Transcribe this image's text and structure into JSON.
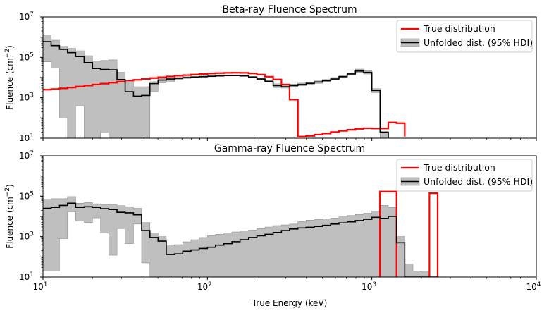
{
  "chart_data": [
    {
      "type": "line",
      "title": "Beta-ray Fluence Spectrum",
      "ylabel": "Fluence (cm",
      "ylabel_sup": "−2",
      "ylabel_close": ")",
      "xscale": "log",
      "yscale": "log",
      "xlim": [
        10,
        10000
      ],
      "ylim": [
        10,
        10000000
      ],
      "y_ticks": [
        10,
        1000,
        100000,
        10000000
      ],
      "y_tick_labels": [
        [
          "10",
          "1"
        ],
        [
          "10",
          "3"
        ],
        [
          "10",
          "5"
        ],
        [
          "10",
          "7"
        ]
      ],
      "legend_placement": "top-right",
      "edges": [
        10,
        11.2,
        12.6,
        14.1,
        15.8,
        17.8,
        20,
        22.4,
        25.1,
        28.2,
        31.6,
        35.5,
        39.8,
        44.7,
        50.1,
        56.2,
        63.1,
        70.8,
        79.4,
        89.1,
        100,
        112,
        126,
        141,
        158,
        178,
        200,
        224,
        251,
        282,
        316,
        355,
        398,
        447,
        501,
        562,
        631,
        708,
        794,
        891,
        1000,
        1122,
        1259,
        1413,
        1585
      ],
      "true_values": [
        2500,
        2700,
        2900,
        3200,
        3600,
        4000,
        4500,
        5000,
        5600,
        6300,
        7000,
        7700,
        8500,
        9400,
        10300,
        11300,
        12300,
        13200,
        14100,
        15000,
        15800,
        16500,
        17000,
        17200,
        17000,
        16000,
        14000,
        11000,
        8000,
        4500,
        800,
        12,
        13,
        15,
        17,
        20,
        23,
        26,
        29,
        31,
        30,
        30,
        60,
        55,
        12
      ],
      "true_end": 1585,
      "unfolded_values": [
        600000,
        380000,
        250000,
        170000,
        110000,
        55000,
        28000,
        25000,
        24000,
        8000,
        2000,
        1200,
        1300,
        5000,
        7500,
        8500,
        9200,
        10000,
        10500,
        11000,
        11500,
        12000,
        12500,
        12500,
        12000,
        10500,
        8500,
        6500,
        4000,
        3500,
        4000,
        4500,
        5200,
        6000,
        7000,
        8500,
        11000,
        15000,
        21000,
        18000,
        2300,
        20,
        5
      ],
      "unfolded_end": 1412,
      "hdi_low": [
        60000,
        30000,
        100,
        10,
        400,
        5,
        10,
        20,
        5,
        8,
        5,
        5,
        5,
        2000,
        5500,
        6500,
        8000,
        9000,
        9800,
        10500,
        11000,
        11500,
        11900,
        12000,
        11500,
        9800,
        7800,
        6000,
        3200,
        3000,
        3400,
        3900,
        4500,
        5200,
        6200,
        7500,
        9500,
        13000,
        18000,
        15000,
        1800,
        5,
        5
      ],
      "hdi_high": [
        1300000,
        700000,
        350000,
        280000,
        210000,
        120000,
        60000,
        70000,
        75000,
        18000,
        6000,
        3500,
        3500,
        6200,
        9000,
        9500,
        10200,
        11000,
        11500,
        12000,
        12500,
        12800,
        13300,
        13500,
        13200,
        11500,
        9200,
        7200,
        4900,
        4100,
        4700,
        5300,
        6000,
        6900,
        8000,
        10000,
        12500,
        17000,
        26000,
        22000,
        2800,
        20,
        8
      ]
    },
    {
      "type": "line",
      "title": "Gamma-ray Fluence Spectrum",
      "ylabel": "Fluence (cm",
      "ylabel_sup": "−2",
      "ylabel_close": ")",
      "xlabel": "True Energy (keV)",
      "xscale": "log",
      "yscale": "log",
      "xlim": [
        10,
        10000
      ],
      "ylim": [
        10,
        10000000
      ],
      "x_ticks": [
        10,
        100,
        1000,
        10000
      ],
      "x_tick_labels": [
        [
          "10",
          "1"
        ],
        [
          "10",
          "2"
        ],
        [
          "10",
          "3"
        ],
        [
          "10",
          "4"
        ]
      ],
      "y_ticks": [
        10,
        1000,
        100000,
        10000000
      ],
      "y_tick_labels": [
        [
          "10",
          "1"
        ],
        [
          "10",
          "3"
        ],
        [
          "10",
          "5"
        ],
        [
          "10",
          "7"
        ]
      ],
      "legend_placement": "top-right",
      "true_segments": [
        {
          "x0": 1120,
          "x1": 1413,
          "value": 170000
        },
        {
          "x0": 2240,
          "x1": 2512,
          "value": 140000
        }
      ],
      "edges": [
        10,
        11.2,
        12.6,
        14.1,
        15.8,
        17.8,
        20,
        22.4,
        25.1,
        28.2,
        31.6,
        35.5,
        39.8,
        44.7,
        50.1,
        56.2,
        63.1,
        70.8,
        79.4,
        89.1,
        100,
        112,
        126,
        141,
        158,
        178,
        200,
        224,
        251,
        282,
        316,
        355,
        398,
        447,
        501,
        562,
        631,
        708,
        794,
        891,
        1000,
        1122,
        1259,
        1413,
        1585,
        1778,
        1995,
        2239,
        2512
      ],
      "unfolded_values": [
        25000,
        28000,
        35000,
        45000,
        28000,
        30000,
        28000,
        24000,
        22000,
        16000,
        15000,
        12000,
        2000,
        900,
        600,
        130,
        140,
        190,
        220,
        260,
        300,
        380,
        450,
        560,
        700,
        900,
        1100,
        1300,
        1600,
        2000,
        2400,
        2700,
        2900,
        3200,
        3600,
        4200,
        4800,
        5400,
        6200,
        7200,
        9000,
        8000,
        10000,
        500,
        10,
        10,
        10,
        10
      ],
      "unfolded_end": 1585,
      "hdi_low": [
        20,
        20,
        800,
        17000,
        6000,
        5000,
        8500,
        1500,
        120,
        2500,
        450,
        4200,
        50,
        10,
        10,
        10,
        10,
        10,
        10,
        10,
        10,
        10,
        10,
        10,
        10,
        10,
        10,
        10,
        10,
        10,
        10,
        10,
        10,
        10,
        10,
        10,
        10,
        10,
        10,
        10,
        10,
        10,
        10,
        10,
        10,
        10,
        10,
        10
      ],
      "hdi_high": [
        70000,
        75000,
        75000,
        95000,
        45000,
        48000,
        42000,
        38000,
        38000,
        34000,
        30000,
        25000,
        5000,
        1500,
        1000,
        350,
        400,
        550,
        700,
        900,
        1100,
        1300,
        1500,
        1700,
        1900,
        2100,
        2500,
        3000,
        3500,
        3800,
        4200,
        5500,
        6500,
        7000,
        7600,
        8200,
        9500,
        11000,
        12500,
        14500,
        18000,
        35000,
        28000,
        1000,
        45,
        20,
        18,
        10
      ]
    }
  ],
  "legend": {
    "true_label": "True distribution",
    "unfolded_label": "Unfolded dist. (95% HDI)"
  },
  "colors": {
    "true": "#ff0000",
    "unfolded": "#000000",
    "hdi_fill": "#bfbfbf",
    "hdi_edge": "#8f8f8f"
  }
}
